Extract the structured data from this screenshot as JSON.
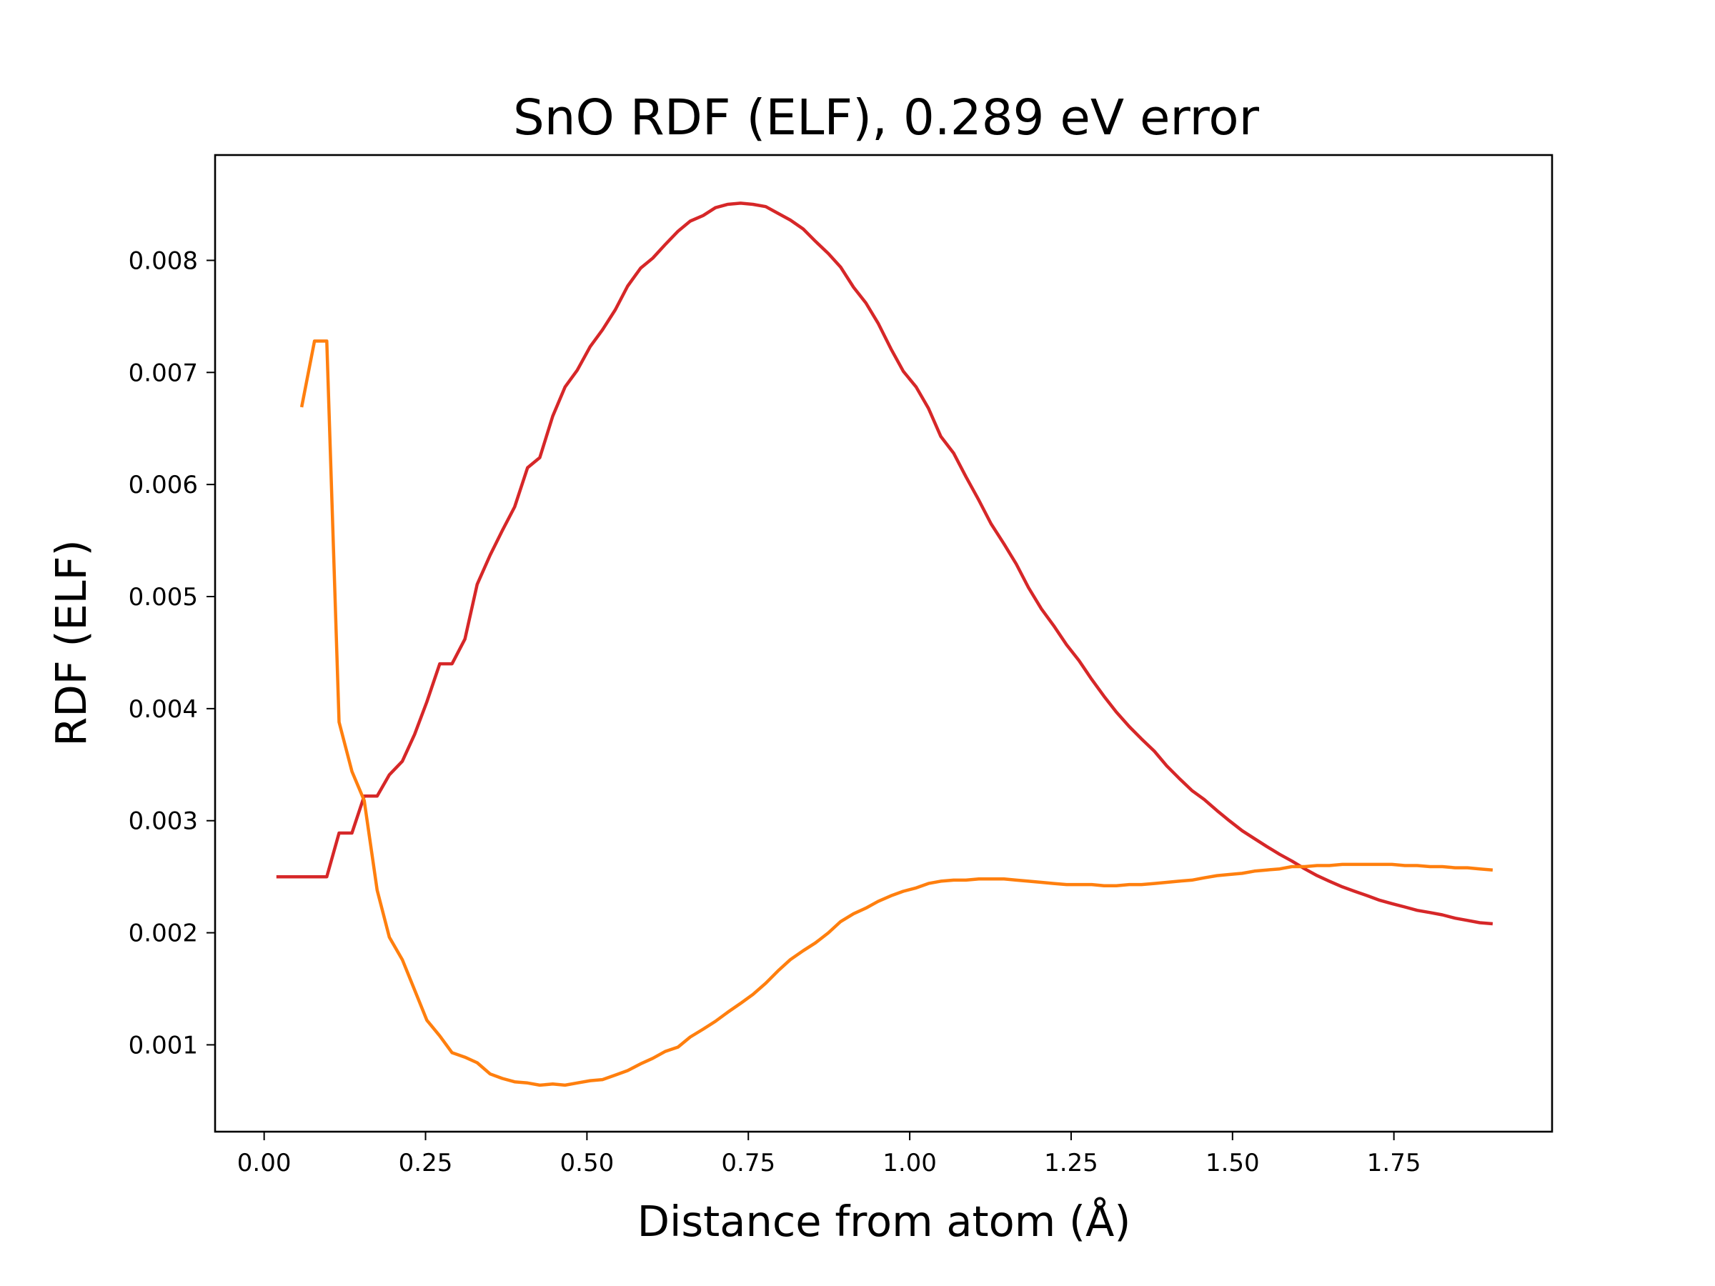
{
  "chart_data": {
    "type": "line",
    "title": "SnO RDF (ELF), 0.289 eV error",
    "xlabel": "Distance from atom (Å)",
    "ylabel": "RDF (ELF)",
    "xlim": [
      -0.076,
      1.995
    ],
    "ylim": [
      0.000225,
      0.00894
    ],
    "xticks": [
      0.0,
      0.25,
      0.5,
      0.75,
      1.0,
      1.25,
      1.5,
      1.75
    ],
    "xtick_labels": [
      "0.00",
      "0.25",
      "0.50",
      "0.75",
      "1.00",
      "1.25",
      "1.50",
      "1.75"
    ],
    "yticks": [
      0.001,
      0.002,
      0.003,
      0.004,
      0.005,
      0.006,
      0.007,
      0.008
    ],
    "ytick_labels": [
      "0.001",
      "0.002",
      "0.003",
      "0.004",
      "0.005",
      "0.006",
      "0.007",
      "0.008"
    ],
    "grid": false,
    "series": [
      {
        "color": "#d62728",
        "points": [
          [
            0.019,
            0.0025
          ],
          [
            0.058,
            0.0025
          ],
          [
            0.097,
            0.0025
          ],
          [
            0.116,
            0.00289
          ],
          [
            0.136,
            0.00289
          ],
          [
            0.155,
            0.00322
          ],
          [
            0.175,
            0.00322
          ],
          [
            0.194,
            0.00341
          ],
          [
            0.214,
            0.00353
          ],
          [
            0.233,
            0.00377
          ],
          [
            0.252,
            0.00406
          ],
          [
            0.272,
            0.0044
          ],
          [
            0.291,
            0.0044
          ],
          [
            0.311,
            0.00462
          ],
          [
            0.33,
            0.00511
          ],
          [
            0.35,
            0.00537
          ],
          [
            0.369,
            0.00559
          ],
          [
            0.388,
            0.0058
          ],
          [
            0.408,
            0.00615
          ],
          [
            0.427,
            0.00624
          ],
          [
            0.447,
            0.00661
          ],
          [
            0.466,
            0.00687
          ],
          [
            0.485,
            0.00702
          ],
          [
            0.505,
            0.00723
          ],
          [
            0.524,
            0.00738
          ],
          [
            0.544,
            0.00756
          ],
          [
            0.563,
            0.00777
          ],
          [
            0.583,
            0.00793
          ],
          [
            0.602,
            0.00802
          ],
          [
            0.621,
            0.00814
          ],
          [
            0.641,
            0.00826
          ],
          [
            0.66,
            0.00835
          ],
          [
            0.68,
            0.0084
          ],
          [
            0.699,
            0.00847
          ],
          [
            0.718,
            0.0085
          ],
          [
            0.738,
            0.00851
          ],
          [
            0.757,
            0.0085
          ],
          [
            0.777,
            0.00848
          ],
          [
            0.796,
            0.00842
          ],
          [
            0.815,
            0.00836
          ],
          [
            0.835,
            0.00828
          ],
          [
            0.854,
            0.00817
          ],
          [
            0.874,
            0.00806
          ],
          [
            0.893,
            0.00794
          ],
          [
            0.913,
            0.00776
          ],
          [
            0.932,
            0.00762
          ],
          [
            0.951,
            0.00744
          ],
          [
            0.971,
            0.00721
          ],
          [
            0.99,
            0.00701
          ],
          [
            1.01,
            0.00687
          ],
          [
            1.029,
            0.00668
          ],
          [
            1.048,
            0.00643
          ],
          [
            1.068,
            0.00628
          ],
          [
            1.087,
            0.00607
          ],
          [
            1.107,
            0.00586
          ],
          [
            1.126,
            0.00565
          ],
          [
            1.146,
            0.00547
          ],
          [
            1.165,
            0.00529
          ],
          [
            1.184,
            0.00508
          ],
          [
            1.204,
            0.00489
          ],
          [
            1.223,
            0.00474
          ],
          [
            1.243,
            0.00457
          ],
          [
            1.262,
            0.00443
          ],
          [
            1.282,
            0.00426
          ],
          [
            1.301,
            0.00411
          ],
          [
            1.32,
            0.00397
          ],
          [
            1.34,
            0.00384
          ],
          [
            1.359,
            0.00373
          ],
          [
            1.379,
            0.00362
          ],
          [
            1.398,
            0.00349
          ],
          [
            1.417,
            0.00338
          ],
          [
            1.437,
            0.00327
          ],
          [
            1.456,
            0.00319
          ],
          [
            1.476,
            0.00309
          ],
          [
            1.495,
            0.003
          ],
          [
            1.515,
            0.00291
          ],
          [
            1.534,
            0.00284
          ],
          [
            1.553,
            0.00277
          ],
          [
            1.573,
            0.0027
          ],
          [
            1.592,
            0.00264
          ],
          [
            1.612,
            0.00257
          ],
          [
            1.631,
            0.00251
          ],
          [
            1.65,
            0.00246
          ],
          [
            1.67,
            0.00241
          ],
          [
            1.689,
            0.00237
          ],
          [
            1.709,
            0.00233
          ],
          [
            1.728,
            0.00229
          ],
          [
            1.747,
            0.00226
          ],
          [
            1.767,
            0.00223
          ],
          [
            1.786,
            0.0022
          ],
          [
            1.806,
            0.00218
          ],
          [
            1.825,
            0.00216
          ],
          [
            1.845,
            0.00213
          ],
          [
            1.864,
            0.00211
          ],
          [
            1.883,
            0.00209
          ],
          [
            1.903,
            0.00208
          ]
        ]
      },
      {
        "color": "#ff7f0e",
        "points": [
          [
            0.058,
            0.00669
          ],
          [
            0.078,
            0.00728
          ],
          [
            0.097,
            0.00728
          ],
          [
            0.116,
            0.00388
          ],
          [
            0.136,
            0.00344
          ],
          [
            0.155,
            0.00318
          ],
          [
            0.175,
            0.00238
          ],
          [
            0.194,
            0.00196
          ],
          [
            0.214,
            0.00176
          ],
          [
            0.233,
            0.00149
          ],
          [
            0.252,
            0.00122
          ],
          [
            0.272,
            0.00108
          ],
          [
            0.291,
            0.00093
          ],
          [
            0.311,
            0.00089
          ],
          [
            0.33,
            0.00084
          ],
          [
            0.35,
            0.00074
          ],
          [
            0.369,
            0.0007
          ],
          [
            0.388,
            0.00067
          ],
          [
            0.408,
            0.00066
          ],
          [
            0.427,
            0.00064
          ],
          [
            0.447,
            0.00065
          ],
          [
            0.466,
            0.00064
          ],
          [
            0.485,
            0.00066
          ],
          [
            0.505,
            0.00068
          ],
          [
            0.524,
            0.00069
          ],
          [
            0.544,
            0.00073
          ],
          [
            0.563,
            0.00077
          ],
          [
            0.583,
            0.00083
          ],
          [
            0.602,
            0.00088
          ],
          [
            0.621,
            0.00094
          ],
          [
            0.641,
            0.00098
          ],
          [
            0.66,
            0.00107
          ],
          [
            0.68,
            0.00114
          ],
          [
            0.699,
            0.00121
          ],
          [
            0.718,
            0.00129
          ],
          [
            0.738,
            0.00137
          ],
          [
            0.757,
            0.00145
          ],
          [
            0.777,
            0.00155
          ],
          [
            0.796,
            0.00166
          ],
          [
            0.815,
            0.00176
          ],
          [
            0.835,
            0.00184
          ],
          [
            0.854,
            0.00191
          ],
          [
            0.874,
            0.002
          ],
          [
            0.893,
            0.0021
          ],
          [
            0.913,
            0.00217
          ],
          [
            0.932,
            0.00222
          ],
          [
            0.951,
            0.00228
          ],
          [
            0.971,
            0.00233
          ],
          [
            0.99,
            0.00237
          ],
          [
            1.01,
            0.0024
          ],
          [
            1.029,
            0.00244
          ],
          [
            1.048,
            0.00246
          ],
          [
            1.068,
            0.00247
          ],
          [
            1.087,
            0.00247
          ],
          [
            1.107,
            0.00248
          ],
          [
            1.126,
            0.00248
          ],
          [
            1.146,
            0.00248
          ],
          [
            1.165,
            0.00247
          ],
          [
            1.184,
            0.00246
          ],
          [
            1.204,
            0.00245
          ],
          [
            1.223,
            0.00244
          ],
          [
            1.243,
            0.00243
          ],
          [
            1.262,
            0.00243
          ],
          [
            1.282,
            0.00243
          ],
          [
            1.301,
            0.00242
          ],
          [
            1.32,
            0.00242
          ],
          [
            1.34,
            0.00243
          ],
          [
            1.359,
            0.00243
          ],
          [
            1.379,
            0.00244
          ],
          [
            1.398,
            0.00245
          ],
          [
            1.417,
            0.00246
          ],
          [
            1.437,
            0.00247
          ],
          [
            1.456,
            0.00249
          ],
          [
            1.476,
            0.00251
          ],
          [
            1.495,
            0.00252
          ],
          [
            1.515,
            0.00253
          ],
          [
            1.534,
            0.00255
          ],
          [
            1.553,
            0.00256
          ],
          [
            1.573,
            0.00257
          ],
          [
            1.592,
            0.00259
          ],
          [
            1.612,
            0.00259
          ],
          [
            1.631,
            0.0026
          ],
          [
            1.65,
            0.0026
          ],
          [
            1.67,
            0.00261
          ],
          [
            1.689,
            0.00261
          ],
          [
            1.709,
            0.00261
          ],
          [
            1.728,
            0.00261
          ],
          [
            1.747,
            0.00261
          ],
          [
            1.767,
            0.0026
          ],
          [
            1.786,
            0.0026
          ],
          [
            1.806,
            0.00259
          ],
          [
            1.825,
            0.00259
          ],
          [
            1.845,
            0.00258
          ],
          [
            1.864,
            0.00258
          ],
          [
            1.883,
            0.00257
          ],
          [
            1.903,
            0.00256
          ]
        ]
      }
    ]
  }
}
